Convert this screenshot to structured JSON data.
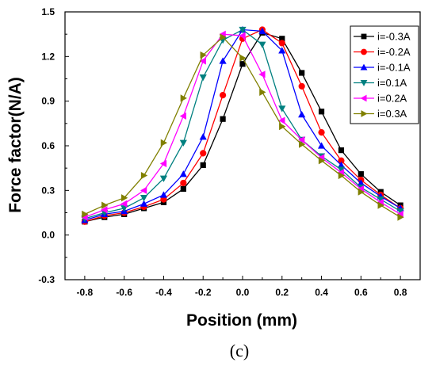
{
  "chart_data": {
    "type": "line",
    "xlabel": "Position (mm)",
    "ylabel": "Force factor(N/A)",
    "caption": "(c)",
    "xlim": [
      -0.9,
      0.9
    ],
    "ylim": [
      -0.3,
      1.5
    ],
    "xticks": [
      "-0.8",
      "-0.6",
      "-0.4",
      "-0.2",
      "0.0",
      "0.2",
      "0.4",
      "0.6",
      "0.8"
    ],
    "yticks": [
      "-0.3",
      "0.0",
      "0.3",
      "0.6",
      "0.9",
      "1.2",
      "1.5"
    ],
    "grid": false,
    "legend_position": "top-right",
    "x": [
      -0.8,
      -0.7,
      -0.6,
      -0.5,
      -0.4,
      -0.3,
      -0.2,
      -0.1,
      0.0,
      0.1,
      0.2,
      0.3,
      0.4,
      0.5,
      0.6,
      0.7,
      0.8
    ],
    "series": [
      {
        "name": "i=-0.3A",
        "color": "#000000",
        "marker": "square",
        "values": [
          0.09,
          0.12,
          0.14,
          0.18,
          0.22,
          0.31,
          0.47,
          0.78,
          1.15,
          1.36,
          1.32,
          1.09,
          0.83,
          0.57,
          0.41,
          0.29,
          0.2
        ]
      },
      {
        "name": "i=-0.2A",
        "color": "#ff0000",
        "marker": "circle",
        "values": [
          0.09,
          0.13,
          0.15,
          0.19,
          0.24,
          0.35,
          0.55,
          0.94,
          1.32,
          1.38,
          1.29,
          1.0,
          0.69,
          0.5,
          0.37,
          0.27,
          0.18
        ]
      },
      {
        "name": "i=-0.1A",
        "color": "#0000ff",
        "marker": "triangle-up",
        "values": [
          0.1,
          0.14,
          0.16,
          0.21,
          0.27,
          0.41,
          0.66,
          1.17,
          1.38,
          1.37,
          1.24,
          0.81,
          0.6,
          0.47,
          0.35,
          0.26,
          0.18
        ]
      },
      {
        "name": "i=0.1A",
        "color": "#008080",
        "marker": "triangle-down",
        "values": [
          0.11,
          0.15,
          0.18,
          0.25,
          0.38,
          0.62,
          1.06,
          1.31,
          1.38,
          1.28,
          0.85,
          0.64,
          0.53,
          0.44,
          0.32,
          0.24,
          0.16
        ]
      },
      {
        "name": "i=0.2A",
        "color": "#ff00ff",
        "marker": "triangle-left",
        "values": [
          0.12,
          0.17,
          0.21,
          0.3,
          0.48,
          0.8,
          1.17,
          1.35,
          1.34,
          1.08,
          0.77,
          0.64,
          0.52,
          0.42,
          0.31,
          0.22,
          0.14
        ]
      },
      {
        "name": "i=0.3A",
        "color": "#808000",
        "marker": "triangle-right",
        "values": [
          0.14,
          0.2,
          0.25,
          0.4,
          0.62,
          0.92,
          1.21,
          1.33,
          1.19,
          0.96,
          0.73,
          0.61,
          0.5,
          0.4,
          0.29,
          0.2,
          0.12
        ]
      }
    ]
  }
}
